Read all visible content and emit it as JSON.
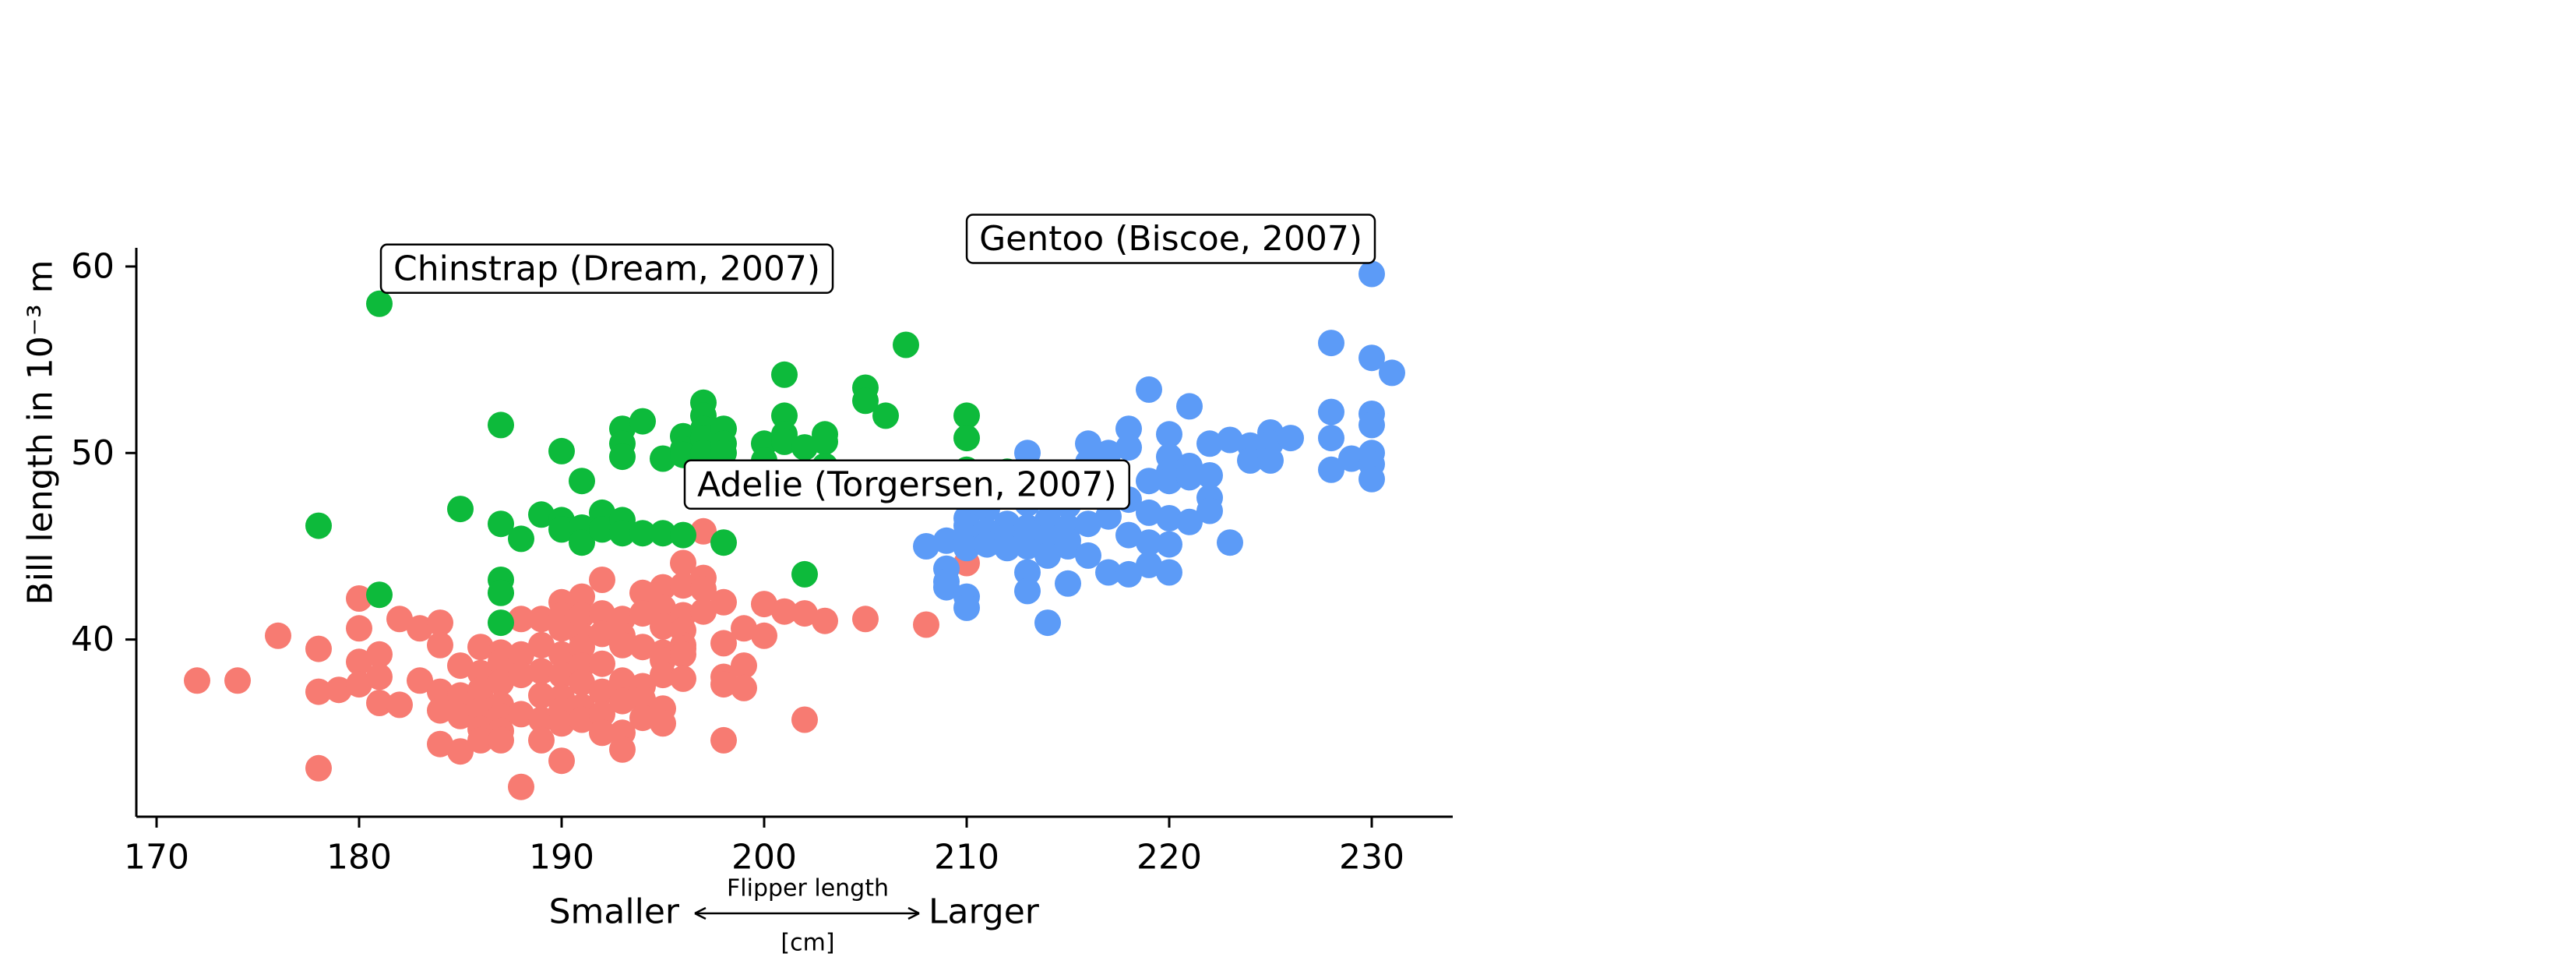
{
  "chart_data": {
    "type": "scatter",
    "title": "",
    "ylabel": "Bill length in 10⁻³ m",
    "xlabel": {
      "left": "Smaller",
      "right": "Larger",
      "top": "Flipper length",
      "bottom": "[cm]"
    },
    "xlim": [
      169,
      234
    ],
    "ylim": [
      30.5,
      61
    ],
    "x_ticks": [
      170,
      180,
      190,
      200,
      210,
      220,
      230
    ],
    "y_ticks": [
      40,
      50,
      60
    ],
    "grid": false,
    "legend": "none",
    "series": [
      {
        "color": "#f77b72",
        "points": [
          [
            172,
            37.8
          ],
          [
            174,
            37.8
          ],
          [
            176,
            40.2
          ],
          [
            178,
            39.5
          ],
          [
            178,
            37.2
          ],
          [
            178,
            33.1
          ],
          [
            179,
            37.3
          ],
          [
            180,
            42.2
          ],
          [
            180,
            40.6
          ],
          [
            180,
            38.8
          ],
          [
            180,
            37.6
          ],
          [
            181,
            39.2
          ],
          [
            181,
            38.0
          ],
          [
            181,
            36.6
          ],
          [
            182,
            41.1
          ],
          [
            182,
            36.5
          ],
          [
            183,
            40.6
          ],
          [
            183,
            37.8
          ],
          [
            184,
            40.9
          ],
          [
            184,
            39.7
          ],
          [
            184,
            37.2
          ],
          [
            184,
            36.2
          ],
          [
            184,
            34.4
          ],
          [
            185,
            38.6
          ],
          [
            185,
            37.0
          ],
          [
            185,
            35.9
          ],
          [
            185,
            34.0
          ],
          [
            186,
            39.6
          ],
          [
            186,
            38.2
          ],
          [
            186,
            37.3
          ],
          [
            186,
            36.2
          ],
          [
            186,
            35.2
          ],
          [
            186,
            34.6
          ],
          [
            187,
            39.3
          ],
          [
            187,
            38.8
          ],
          [
            187,
            37.7
          ],
          [
            187,
            36.5
          ],
          [
            187,
            35.9
          ],
          [
            187,
            35.1
          ],
          [
            187,
            34.6
          ],
          [
            188,
            41.1
          ],
          [
            188,
            39.2
          ],
          [
            188,
            38.1
          ],
          [
            188,
            36.0
          ],
          [
            188,
            32.1
          ],
          [
            189,
            41.1
          ],
          [
            189,
            39.7
          ],
          [
            189,
            38.3
          ],
          [
            189,
            37.0
          ],
          [
            189,
            35.7
          ],
          [
            189,
            34.6
          ],
          [
            190,
            42.0
          ],
          [
            190,
            41.3
          ],
          [
            190,
            40.6
          ],
          [
            190,
            39.2
          ],
          [
            190,
            38.1
          ],
          [
            190,
            36.9
          ],
          [
            190,
            36.2
          ],
          [
            190,
            35.5
          ],
          [
            190,
            33.5
          ],
          [
            191,
            42.3
          ],
          [
            191,
            41.3
          ],
          [
            191,
            40.2
          ],
          [
            191,
            39.6
          ],
          [
            191,
            38.6
          ],
          [
            191,
            37.7
          ],
          [
            191,
            36.4
          ],
          [
            191,
            35.7
          ],
          [
            192,
            43.2
          ],
          [
            192,
            41.4
          ],
          [
            192,
            40.3
          ],
          [
            192,
            38.7
          ],
          [
            192,
            37.2
          ],
          [
            192,
            36.0
          ],
          [
            192,
            35.0
          ],
          [
            193,
            41.1
          ],
          [
            193,
            40.2
          ],
          [
            193,
            39.7
          ],
          [
            193,
            37.8
          ],
          [
            193,
            36.7
          ],
          [
            193,
            35.0
          ],
          [
            193,
            34.1
          ],
          [
            194,
            42.5
          ],
          [
            194,
            41.4
          ],
          [
            194,
            39.6
          ],
          [
            194,
            37.5
          ],
          [
            194,
            36.8
          ],
          [
            194,
            35.8
          ],
          [
            195,
            42.8
          ],
          [
            195,
            41.7
          ],
          [
            195,
            40.7
          ],
          [
            195,
            39.3
          ],
          [
            195,
            38.9
          ],
          [
            195,
            38.1
          ],
          [
            195,
            36.3
          ],
          [
            195,
            35.5
          ],
          [
            196,
            44.1
          ],
          [
            196,
            42.9
          ],
          [
            196,
            41.3
          ],
          [
            196,
            40.5
          ],
          [
            196,
            39.7
          ],
          [
            196,
            39.5
          ],
          [
            196,
            39.2
          ],
          [
            196,
            37.9
          ],
          [
            197,
            45.8
          ],
          [
            197,
            43.3
          ],
          [
            197,
            42.7
          ],
          [
            197,
            41.5
          ],
          [
            198,
            42.0
          ],
          [
            198,
            39.8
          ],
          [
            198,
            38.0
          ],
          [
            198,
            37.6
          ],
          [
            198,
            34.6
          ],
          [
            199,
            40.6
          ],
          [
            199,
            38.6
          ],
          [
            199,
            37.4
          ],
          [
            200,
            41.9
          ],
          [
            200,
            40.2
          ],
          [
            201,
            41.5
          ],
          [
            202,
            41.4
          ],
          [
            202,
            35.7
          ],
          [
            203,
            41.0
          ],
          [
            205,
            41.1
          ],
          [
            208,
            40.8
          ],
          [
            210,
            44.1
          ]
        ]
      },
      {
        "color": "#0dba3b",
        "points": [
          [
            178,
            46.1
          ],
          [
            181,
            58.0
          ],
          [
            181,
            42.4
          ],
          [
            185,
            47.0
          ],
          [
            187,
            51.5
          ],
          [
            187,
            46.2
          ],
          [
            187,
            43.2
          ],
          [
            187,
            42.5
          ],
          [
            187,
            40.9
          ],
          [
            188,
            45.4
          ],
          [
            189,
            46.7
          ],
          [
            190,
            50.1
          ],
          [
            190,
            46.4
          ],
          [
            190,
            45.9
          ],
          [
            191,
            48.5
          ],
          [
            191,
            46.0
          ],
          [
            191,
            45.2
          ],
          [
            192,
            46.8
          ],
          [
            192,
            45.9
          ],
          [
            193,
            51.3
          ],
          [
            193,
            50.5
          ],
          [
            193,
            49.8
          ],
          [
            193,
            46.4
          ],
          [
            193,
            45.7
          ],
          [
            194,
            51.7
          ],
          [
            194,
            45.7
          ],
          [
            195,
            49.7
          ],
          [
            195,
            45.7
          ],
          [
            196,
            50.9
          ],
          [
            196,
            50.2
          ],
          [
            196,
            49.9
          ],
          [
            196,
            45.6
          ],
          [
            197,
            52.7
          ],
          [
            197,
            52.0
          ],
          [
            197,
            51.3
          ],
          [
            197,
            50.8
          ],
          [
            197,
            50.0
          ],
          [
            198,
            51.3
          ],
          [
            198,
            50.5
          ],
          [
            198,
            50.0
          ],
          [
            198,
            45.2
          ],
          [
            200,
            50.5
          ],
          [
            200,
            49.6
          ],
          [
            201,
            54.2
          ],
          [
            201,
            52.0
          ],
          [
            201,
            51.0
          ],
          [
            201,
            50.6
          ],
          [
            202,
            50.3
          ],
          [
            202,
            43.5
          ],
          [
            203,
            51.0
          ],
          [
            203,
            50.6
          ],
          [
            203,
            49.3
          ],
          [
            205,
            53.5
          ],
          [
            205,
            52.8
          ],
          [
            206,
            52.0
          ],
          [
            207,
            55.8
          ],
          [
            210,
            52.0
          ],
          [
            210,
            50.8
          ],
          [
            210,
            49.1
          ],
          [
            212,
            49.0
          ]
        ]
      },
      {
        "color": "#5c9bf7",
        "points": [
          [
            208,
            45.0
          ],
          [
            209,
            43.8
          ],
          [
            209,
            43.1
          ],
          [
            209,
            42.8
          ],
          [
            209,
            45.3
          ],
          [
            210,
            48.7
          ],
          [
            210,
            47.5
          ],
          [
            210,
            46.5
          ],
          [
            210,
            46.1
          ],
          [
            210,
            45.5
          ],
          [
            210,
            44.9
          ],
          [
            210,
            42.3
          ],
          [
            210,
            41.7
          ],
          [
            211,
            47.0
          ],
          [
            211,
            45.8
          ],
          [
            211,
            45.1
          ],
          [
            212,
            46.2
          ],
          [
            212,
            45.5
          ],
          [
            212,
            44.9
          ],
          [
            213,
            50.0
          ],
          [
            213,
            47.3
          ],
          [
            213,
            46.0
          ],
          [
            213,
            45.0
          ],
          [
            213,
            43.6
          ],
          [
            213,
            42.6
          ],
          [
            214,
            47.8
          ],
          [
            214,
            46.4
          ],
          [
            214,
            45.5
          ],
          [
            214,
            44.5
          ],
          [
            214,
            40.9
          ],
          [
            215,
            48.5
          ],
          [
            215,
            47.2
          ],
          [
            215,
            46.0
          ],
          [
            215,
            45.3
          ],
          [
            215,
            45.0
          ],
          [
            215,
            43.0
          ],
          [
            216,
            50.5
          ],
          [
            216,
            49.5
          ],
          [
            216,
            48.4
          ],
          [
            216,
            46.2
          ],
          [
            216,
            44.5
          ],
          [
            217,
            50.0
          ],
          [
            217,
            47.3
          ],
          [
            217,
            46.6
          ],
          [
            217,
            43.6
          ],
          [
            218,
            51.3
          ],
          [
            218,
            50.3
          ],
          [
            218,
            47.5
          ],
          [
            218,
            45.6
          ],
          [
            218,
            43.5
          ],
          [
            219,
            53.4
          ],
          [
            219,
            48.5
          ],
          [
            219,
            46.8
          ],
          [
            219,
            45.2
          ],
          [
            219,
            44.0
          ],
          [
            220,
            51.0
          ],
          [
            220,
            49.8
          ],
          [
            220,
            49.0
          ],
          [
            220,
            48.5
          ],
          [
            220,
            46.5
          ],
          [
            220,
            45.1
          ],
          [
            220,
            43.6
          ],
          [
            221,
            52.5
          ],
          [
            221,
            49.3
          ],
          [
            221,
            48.7
          ],
          [
            221,
            46.3
          ],
          [
            222,
            50.5
          ],
          [
            222,
            48.8
          ],
          [
            222,
            47.6
          ],
          [
            222,
            46.9
          ],
          [
            223,
            50.7
          ],
          [
            223,
            45.2
          ],
          [
            224,
            50.4
          ],
          [
            224,
            49.6
          ],
          [
            225,
            51.1
          ],
          [
            225,
            50.5
          ],
          [
            225,
            49.6
          ],
          [
            226,
            50.8
          ],
          [
            228,
            55.9
          ],
          [
            228,
            52.2
          ],
          [
            228,
            50.8
          ],
          [
            228,
            49.1
          ],
          [
            229,
            49.7
          ],
          [
            230,
            59.6
          ],
          [
            230,
            55.1
          ],
          [
            230,
            52.1
          ],
          [
            230,
            51.5
          ],
          [
            230,
            50.0
          ],
          [
            230,
            49.4
          ],
          [
            230,
            48.6
          ],
          [
            231,
            54.3
          ]
        ]
      }
    ],
    "annotations": [
      {
        "text": "Chinstrap (Dream, 2007)",
        "x": 181,
        "y": 58.0
      },
      {
        "text": "Gentoo (Biscoe, 2007)",
        "x": 230,
        "y": 59.6
      },
      {
        "text": "Adelie (Torgersen, 2007)",
        "x": 196,
        "y": 45.8
      }
    ]
  }
}
